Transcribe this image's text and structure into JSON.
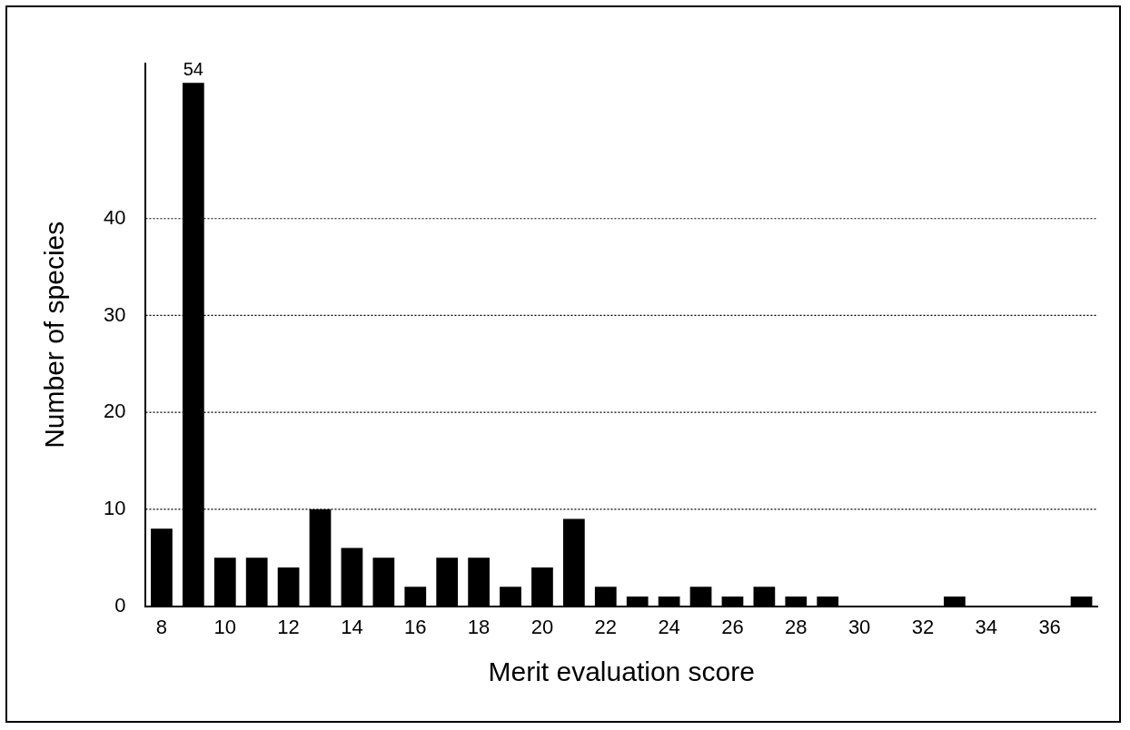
{
  "chart_data": {
    "type": "bar",
    "xlabel": "Merit evaluation score",
    "ylabel": "Number of species",
    "categories": [
      "8",
      null,
      "10",
      null,
      "12",
      null,
      "14",
      null,
      "16",
      null,
      "18",
      null,
      "20",
      null,
      "22",
      null,
      "24",
      null,
      "26",
      null,
      "28",
      null,
      "30",
      null,
      "32",
      null,
      "34",
      null,
      "36",
      null
    ],
    "values": [
      8,
      54,
      5,
      5,
      4,
      10,
      6,
      5,
      2,
      5,
      5,
      2,
      4,
      9,
      2,
      1,
      1,
      2,
      1,
      2,
      1,
      1,
      0,
      0,
      0,
      1,
      0,
      0,
      0,
      1
    ],
    "value_labels": [
      null,
      "54",
      null,
      null,
      null,
      null,
      null,
      null,
      null,
      null,
      null,
      null,
      null,
      null,
      null,
      null,
      null,
      null,
      null,
      null,
      null,
      null,
      null,
      null,
      null,
      null,
      null,
      null,
      null,
      null
    ],
    "color": "#000000",
    "ylim": [
      0,
      56
    ],
    "yticks": [
      0,
      10,
      20,
      30,
      40
    ],
    "grid": "y",
    "legend": false
  }
}
